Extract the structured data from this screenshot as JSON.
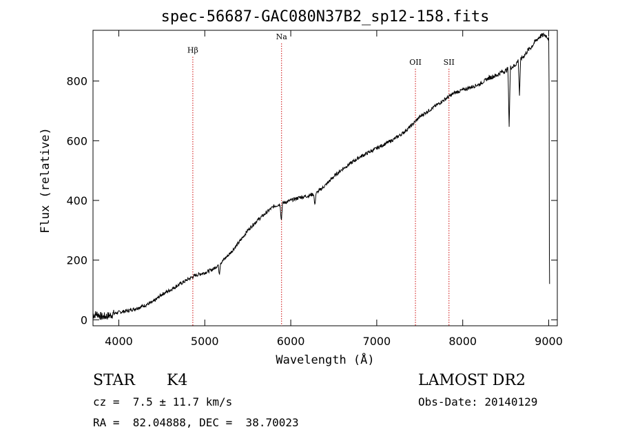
{
  "chart_data": {
    "type": "line",
    "title": "spec-56687-GAC080N37B2_sp12-158.fits",
    "xlabel": "Wavelength (Å)",
    "ylabel": "Flux (relative)",
    "xlim": [
      3700,
      9100
    ],
    "ylim": [
      -20,
      970
    ],
    "xticks": [
      4000,
      5000,
      6000,
      7000,
      8000,
      9000
    ],
    "yticks": [
      0,
      200,
      400,
      600,
      800
    ],
    "line_color": "#000000",
    "marker_color": "#cc0000",
    "series": [
      {
        "name": "flux",
        "x": [
          3700,
          3750,
          3800,
          3850,
          3900,
          3950,
          4000,
          4100,
          4200,
          4300,
          4400,
          4500,
          4600,
          4700,
          4800,
          4900,
          5000,
          5100,
          5200,
          5300,
          5400,
          5500,
          5600,
          5700,
          5800,
          5900,
          6000,
          6100,
          6200,
          6300,
          6400,
          6500,
          6600,
          6700,
          6800,
          6900,
          7000,
          7100,
          7200,
          7300,
          7400,
          7500,
          7600,
          7700,
          7800,
          7900,
          8000,
          8100,
          8200,
          8300,
          8400,
          8450,
          8500,
          8550,
          8600,
          8650,
          8700,
          8750,
          8800,
          8850,
          8900,
          8950,
          8980,
          9000
        ],
        "y": [
          15,
          20,
          10,
          12,
          15,
          22,
          25,
          30,
          38,
          48,
          60,
          85,
          100,
          118,
          135,
          150,
          158,
          170,
          195,
          225,
          260,
          300,
          330,
          355,
          380,
          390,
          400,
          410,
          415,
          425,
          450,
          480,
          505,
          525,
          545,
          560,
          575,
          590,
          605,
          625,
          650,
          680,
          700,
          720,
          740,
          760,
          770,
          780,
          790,
          810,
          820,
          830,
          835,
          845,
          850,
          870,
          880,
          900,
          915,
          935,
          950,
          955,
          950,
          940
        ]
      }
    ],
    "absorption_dips": [
      {
        "x": 5170,
        "depth": 35
      },
      {
        "x": 5890,
        "depth": 60
      },
      {
        "x": 6280,
        "depth": 40
      },
      {
        "x": 8540,
        "depth": 195
      },
      {
        "x": 8660,
        "depth": 120
      }
    ],
    "annotations": [
      {
        "label": "Hβ",
        "x": 4861,
        "label_y": 895
      },
      {
        "label": "Na",
        "x": 5893,
        "label_y": 940
      },
      {
        "label": "OII",
        "x": 7450,
        "label_y": 855
      },
      {
        "label": "SII",
        "x": 7840,
        "label_y": 855
      }
    ]
  },
  "info": {
    "object_type": "STAR",
    "subclass": "K4",
    "survey": "LAMOST DR2",
    "redshift": "cz =  7.5 ± 11.7 km/s",
    "obs_date": "Obs-Date: 20140129",
    "coords": "RA =  82.04888, DEC =  38.70023"
  }
}
